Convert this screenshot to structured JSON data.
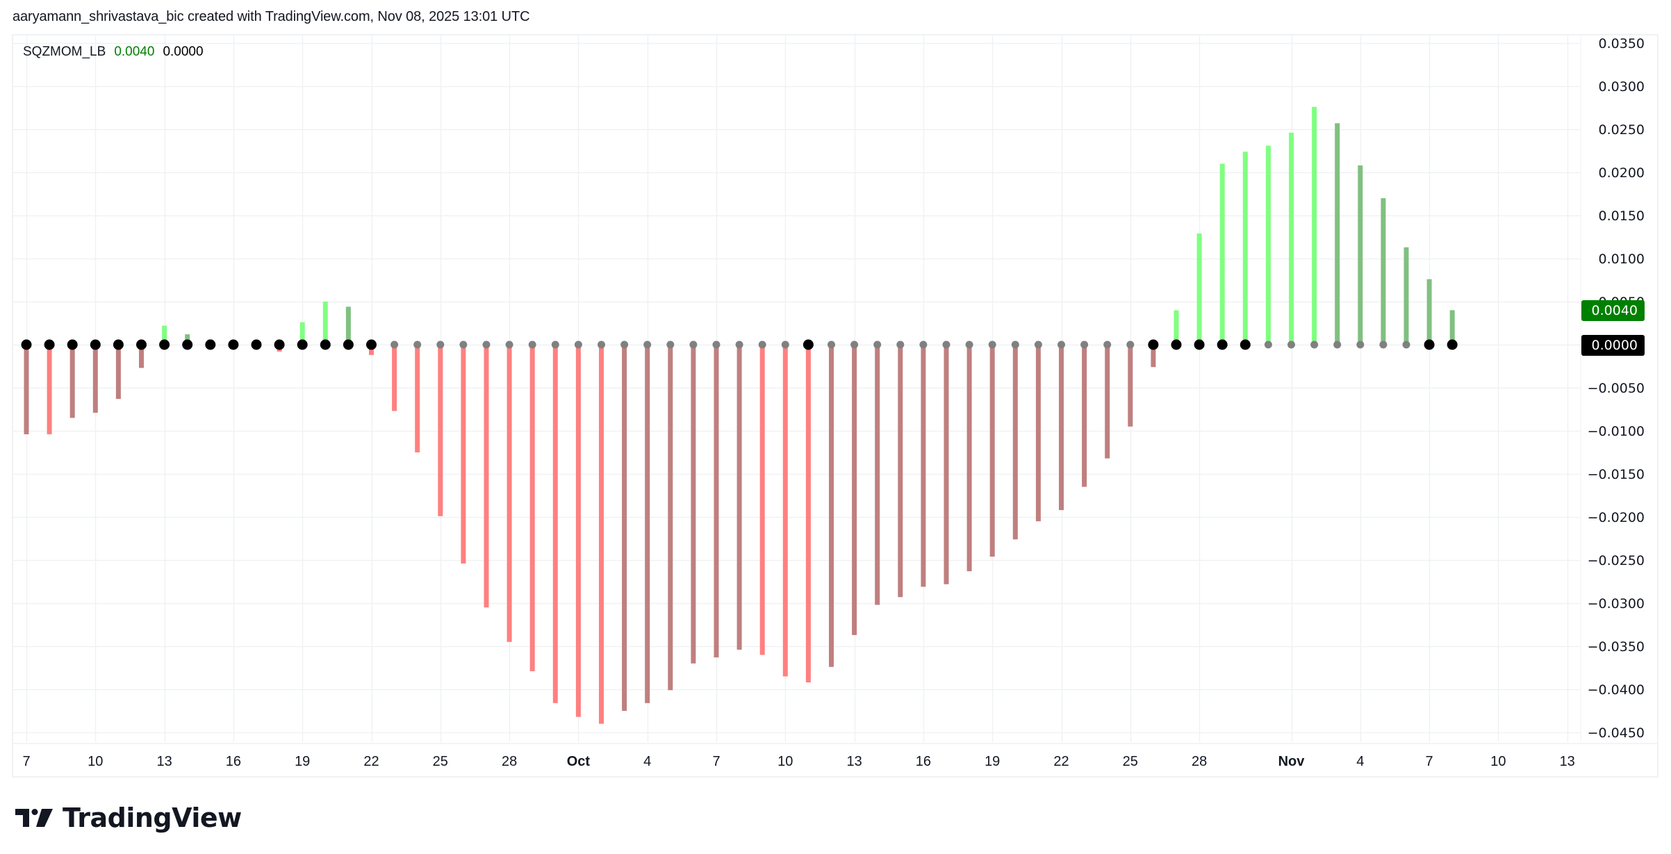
{
  "header": {
    "attribution": "aaryamann_shrivastava_bic created with TradingView.com, Nov 08, 2025 13:01 UTC"
  },
  "legend": {
    "indicator_name": "SQZMOM_LB",
    "momentum_value": "0.0040",
    "squeeze_value": "0.0000"
  },
  "price_labels": {
    "momentum": "0.0040",
    "squeeze": "0.0000"
  },
  "branding": {
    "logo_text": "TradingView"
  },
  "colors": {
    "lime": "#80ff80",
    "green": "#80c080",
    "red": "#ff8080",
    "maroon": "#c07f7f",
    "dot_black": "#000000",
    "dot_gray": "#808080",
    "label_green": "#008000",
    "label_black": "#000000",
    "grid": "#f0f1f4",
    "axis_text": "#131722"
  },
  "chart_data": {
    "type": "bar",
    "title": "SQZMOM_LB",
    "xlabel": "",
    "ylabel": "",
    "ylim": [
      -0.045,
      0.035
    ],
    "grid": true,
    "legend_position": "top-left",
    "y_ticks": [
      "0.0350",
      "0.0300",
      "0.0250",
      "0.0200",
      "0.0150",
      "0.0100",
      "0.0050",
      "0.0000",
      "−0.0050",
      "−0.0100",
      "−0.0150",
      "−0.0200",
      "−0.0250",
      "−0.0300",
      "−0.0350",
      "−0.0400",
      "−0.0450"
    ],
    "y_tick_values": [
      0.035,
      0.03,
      0.025,
      0.02,
      0.015,
      0.01,
      0.005,
      0.0,
      -0.005,
      -0.01,
      -0.015,
      -0.02,
      -0.025,
      -0.03,
      -0.035,
      -0.04,
      -0.045
    ],
    "x_ticks": [
      {
        "label": "7",
        "index": 0,
        "bold": false
      },
      {
        "label": "10",
        "index": 3,
        "bold": false
      },
      {
        "label": "13",
        "index": 6,
        "bold": false
      },
      {
        "label": "16",
        "index": 9,
        "bold": false
      },
      {
        "label": "19",
        "index": 12,
        "bold": false
      },
      {
        "label": "22",
        "index": 15,
        "bold": false
      },
      {
        "label": "25",
        "index": 18,
        "bold": false
      },
      {
        "label": "28",
        "index": 21,
        "bold": false
      },
      {
        "label": "Oct",
        "index": 24,
        "bold": true
      },
      {
        "label": "4",
        "index": 27,
        "bold": false
      },
      {
        "label": "7",
        "index": 30,
        "bold": false
      },
      {
        "label": "10",
        "index": 33,
        "bold": false
      },
      {
        "label": "13",
        "index": 36,
        "bold": false
      },
      {
        "label": "16",
        "index": 39,
        "bold": false
      },
      {
        "label": "19",
        "index": 42,
        "bold": false
      },
      {
        "label": "22",
        "index": 45,
        "bold": false
      },
      {
        "label": "25",
        "index": 48,
        "bold": false
      },
      {
        "label": "28",
        "index": 51,
        "bold": false
      },
      {
        "label": "Nov",
        "index": 55,
        "bold": true
      },
      {
        "label": "4",
        "index": 58,
        "bold": false
      },
      {
        "label": "7",
        "index": 61,
        "bold": false
      },
      {
        "label": "10",
        "index": 64,
        "bold": false
      },
      {
        "label": "13",
        "index": 67,
        "bold": false
      }
    ],
    "categories": [
      "Sep 7",
      "Sep 8",
      "Sep 9",
      "Sep 10",
      "Sep 11",
      "Sep 12",
      "Sep 13",
      "Sep 14",
      "Sep 15",
      "Sep 16",
      "Sep 17",
      "Sep 18",
      "Sep 19",
      "Sep 20",
      "Sep 21",
      "Sep 22",
      "Sep 23",
      "Sep 24",
      "Sep 25",
      "Sep 26",
      "Sep 27",
      "Sep 28",
      "Sep 29",
      "Sep 30",
      "Oct 1",
      "Oct 2",
      "Oct 3",
      "Oct 4",
      "Oct 5",
      "Oct 6",
      "Oct 7",
      "Oct 8",
      "Oct 9",
      "Oct 10",
      "Oct 11",
      "Oct 12",
      "Oct 13",
      "Oct 14",
      "Oct 15",
      "Oct 16",
      "Oct 17",
      "Oct 18",
      "Oct 19",
      "Oct 20",
      "Oct 21",
      "Oct 22",
      "Oct 23",
      "Oct 24",
      "Oct 25",
      "Oct 26",
      "Oct 27",
      "Oct 28",
      "Oct 29",
      "Oct 30",
      "Oct 31",
      "Nov 1",
      "Nov 2",
      "Nov 3",
      "Nov 4",
      "Nov 5",
      "Nov 6",
      "Nov 7",
      "Nov 8"
    ],
    "series": [
      {
        "name": "Momentum",
        "style": "histogram",
        "values": [
          -0.0104,
          -0.0104,
          -0.0085,
          -0.0079,
          -0.0063,
          -0.0027,
          0.0022,
          0.0012,
          0.0006,
          0.0,
          0.0,
          -0.0008,
          0.0026,
          0.005,
          0.0044,
          -0.0012,
          -0.0077,
          -0.0125,
          -0.0199,
          -0.0254,
          -0.0305,
          -0.0345,
          -0.0379,
          -0.0416,
          -0.0432,
          -0.044,
          -0.0425,
          -0.0416,
          -0.0401,
          -0.037,
          -0.0363,
          -0.0354,
          -0.036,
          -0.0385,
          -0.0392,
          -0.0374,
          -0.0337,
          -0.0302,
          -0.0293,
          -0.0281,
          -0.0278,
          -0.0263,
          -0.0246,
          -0.0226,
          -0.0205,
          -0.0192,
          -0.0165,
          -0.0132,
          -0.0095,
          -0.0026,
          0.004,
          0.0129,
          0.021,
          0.0224,
          0.0231,
          0.0246,
          0.0276,
          0.0257,
          0.0208,
          0.017,
          0.0113,
          0.0076,
          0.004
        ],
        "colors": [
          "maroon",
          "red",
          "maroon",
          "maroon",
          "maroon",
          "maroon",
          "lime",
          "green",
          "green",
          "none",
          "none",
          "red",
          "lime",
          "lime",
          "green",
          "red",
          "red",
          "red",
          "red",
          "red",
          "red",
          "red",
          "red",
          "red",
          "red",
          "red",
          "maroon",
          "maroon",
          "maroon",
          "maroon",
          "maroon",
          "maroon",
          "red",
          "red",
          "red",
          "maroon",
          "maroon",
          "maroon",
          "maroon",
          "maroon",
          "maroon",
          "maroon",
          "maroon",
          "maroon",
          "maroon",
          "maroon",
          "maroon",
          "maroon",
          "maroon",
          "maroon",
          "lime",
          "lime",
          "lime",
          "lime",
          "lime",
          "lime",
          "lime",
          "green",
          "green",
          "green",
          "green",
          "green",
          "green"
        ]
      },
      {
        "name": "Squeeze",
        "style": "cross-dots",
        "values": [
          0,
          0,
          0,
          0,
          0,
          0,
          0,
          0,
          0,
          0,
          0,
          0,
          0,
          0,
          0,
          0,
          0,
          0,
          0,
          0,
          0,
          0,
          0,
          0,
          0,
          0,
          0,
          0,
          0,
          0,
          0,
          0,
          0,
          0,
          0,
          0,
          0,
          0,
          0,
          0,
          0,
          0,
          0,
          0,
          0,
          0,
          0,
          0,
          0,
          0,
          0,
          0,
          0,
          0,
          0,
          0,
          0,
          0,
          0,
          0,
          0,
          0,
          0
        ],
        "colors": [
          "black",
          "black",
          "black",
          "black",
          "black",
          "black",
          "black",
          "black",
          "black",
          "black",
          "black",
          "black",
          "black",
          "black",
          "black",
          "black",
          "gray",
          "gray",
          "gray",
          "gray",
          "gray",
          "gray",
          "gray",
          "gray",
          "gray",
          "gray",
          "gray",
          "gray",
          "gray",
          "gray",
          "gray",
          "gray",
          "gray",
          "gray",
          "black",
          "gray",
          "gray",
          "gray",
          "gray",
          "gray",
          "gray",
          "gray",
          "gray",
          "gray",
          "gray",
          "gray",
          "gray",
          "gray",
          "gray",
          "black",
          "black",
          "black",
          "black",
          "black",
          "gray",
          "gray",
          "gray",
          "gray",
          "gray",
          "gray",
          "gray",
          "black",
          "black"
        ]
      }
    ]
  }
}
